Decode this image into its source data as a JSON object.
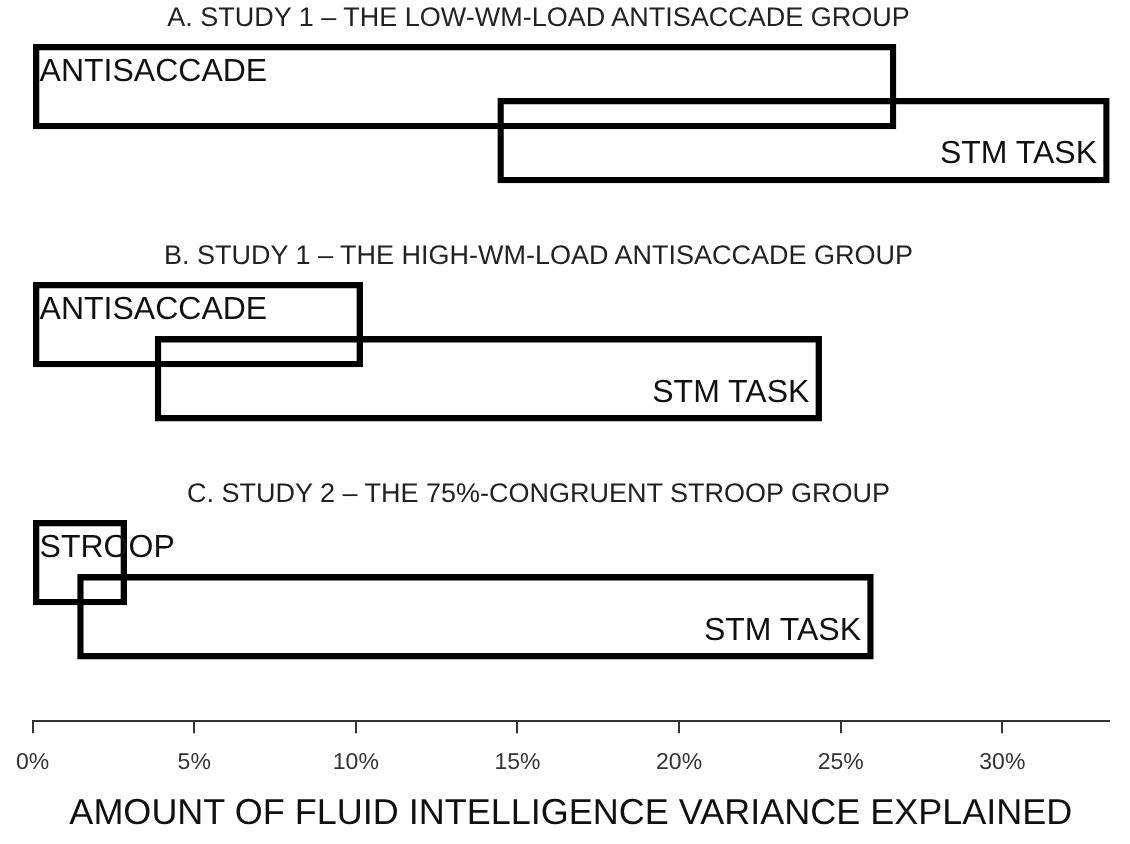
{
  "chart_data": {
    "type": "bar",
    "orientation": "horizontal",
    "categories": [
      "ANTISACCADE",
      "STM TASK",
      "ANTISACCADE",
      "STM TASK",
      "STROOP",
      "STM TASK"
    ],
    "values": [
      26.7,
      18.9,
      10.2,
      20.6,
      2.9,
      24.6
    ],
    "base": [
      0,
      14.4,
      0,
      3.8,
      0,
      1.4
    ],
    "color": "#000000",
    "xlim": [
      0,
      33.3
    ],
    "xticks": [
      {
        "value": 0,
        "label": "0%"
      },
      {
        "value": 5,
        "label": "5%"
      },
      {
        "value": 10,
        "label": "10%"
      },
      {
        "value": 15,
        "label": "15%"
      },
      {
        "value": 20,
        "label": "20%"
      },
      {
        "value": 25,
        "label": "25%"
      },
      {
        "value": 30,
        "label": "30%"
      }
    ],
    "xlabel": "AMOUNT OF FLUID INTELLIGENCE VARIANCE EXPLAINED",
    "tick_labels": "x",
    "annotations": [
      "A. STUDY 1 – THE LOW-WM-LOAD ANTISACCADE GROUP",
      "B. STUDY 1 – THE HIGH-WM-LOAD ANTISACCADE GROUP",
      "C. STUDY 2 – THE 75%-CONGRUENT STROOP GROUP"
    ]
  }
}
